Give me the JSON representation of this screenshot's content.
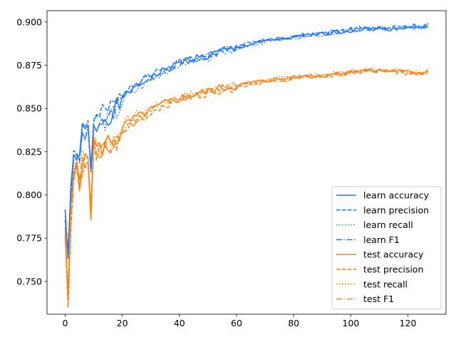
{
  "chart_data": {
    "type": "line",
    "title": "",
    "xlabel": "",
    "ylabel": "",
    "xlim": [
      -6.35,
      133.35
    ],
    "ylim": [
      0.731,
      0.9065
    ],
    "x_ticks": [
      0,
      20,
      40,
      60,
      80,
      100,
      120
    ],
    "x_tick_labels": [
      "0",
      "20",
      "40",
      "60",
      "80",
      "100",
      "120"
    ],
    "y_ticks": [
      0.75,
      0.775,
      0.8,
      0.825,
      0.85,
      0.875,
      0.9
    ],
    "y_tick_labels": [
      "0.750",
      "0.775",
      "0.800",
      "0.825",
      "0.850",
      "0.875",
      "0.900"
    ],
    "grid": false,
    "legend_position": "lower-right",
    "series": [
      {
        "name": "learn accuracy",
        "color": "#1f77ff",
        "style": "solid",
        "key": "learn",
        "offset": 0,
        "seed": 1
      },
      {
        "name": "learn precision",
        "color": "#1f77ff",
        "style": "dashed",
        "key": "learn",
        "offset": 0.002,
        "seed": 2
      },
      {
        "name": "learn recall",
        "color": "#1f77ff",
        "style": "dotted",
        "key": "learn",
        "offset": -0.001,
        "seed": 3
      },
      {
        "name": "learn F1",
        "color": "#1f77ff",
        "style": "dashdot",
        "key": "learn",
        "offset": 0.0005,
        "seed": 4
      },
      {
        "name": "test accuracy",
        "color": "#ff7f0e",
        "style": "solid",
        "key": "test",
        "offset": 0,
        "seed": 5
      },
      {
        "name": "test precision",
        "color": "#ff7f0e",
        "style": "dashed",
        "key": "test",
        "offset": -0.002,
        "seed": 6
      },
      {
        "name": "test recall",
        "color": "#ff7f0e",
        "style": "dotted",
        "key": "test",
        "offset": 0.001,
        "seed": 7
      },
      {
        "name": "test F1",
        "color": "#ff7f0e",
        "style": "dashdot",
        "key": "test",
        "offset": -0.0008,
        "seed": 8
      }
    ],
    "curves": {
      "learn": {
        "x": [
          0,
          1,
          2,
          3,
          4,
          5,
          6,
          7,
          8,
          9,
          10,
          12,
          15,
          18,
          20,
          22,
          25,
          28,
          30,
          35,
          40,
          45,
          50,
          55,
          60,
          65,
          70,
          75,
          80,
          85,
          90,
          95,
          100,
          105,
          110,
          115,
          120,
          125,
          127
        ],
        "y": [
          0.79,
          0.765,
          0.8,
          0.82,
          0.825,
          0.818,
          0.838,
          0.835,
          0.84,
          0.812,
          0.838,
          0.842,
          0.846,
          0.85,
          0.855,
          0.86,
          0.862,
          0.866,
          0.868,
          0.872,
          0.876,
          0.879,
          0.88,
          0.883,
          0.885,
          0.887,
          0.889,
          0.89,
          0.891,
          0.892,
          0.893,
          0.894,
          0.895,
          0.896,
          0.896,
          0.896,
          0.897,
          0.897,
          0.898
        ]
      },
      "test": {
        "x": [
          0,
          1,
          2,
          3,
          4,
          5,
          6,
          7,
          8,
          9,
          10,
          12,
          15,
          18,
          20,
          22,
          25,
          28,
          30,
          35,
          40,
          45,
          50,
          55,
          60,
          65,
          70,
          75,
          80,
          85,
          90,
          95,
          100,
          105,
          110,
          115,
          120,
          125,
          127
        ],
        "y": [
          0.777,
          0.74,
          0.79,
          0.812,
          0.82,
          0.808,
          0.82,
          0.818,
          0.822,
          0.79,
          0.83,
          0.826,
          0.831,
          0.832,
          0.838,
          0.842,
          0.845,
          0.847,
          0.849,
          0.853,
          0.856,
          0.858,
          0.86,
          0.862,
          0.863,
          0.865,
          0.866,
          0.867,
          0.868,
          0.869,
          0.869,
          0.87,
          0.871,
          0.872,
          0.872,
          0.872,
          0.871,
          0.871,
          0.872
        ]
      }
    }
  }
}
